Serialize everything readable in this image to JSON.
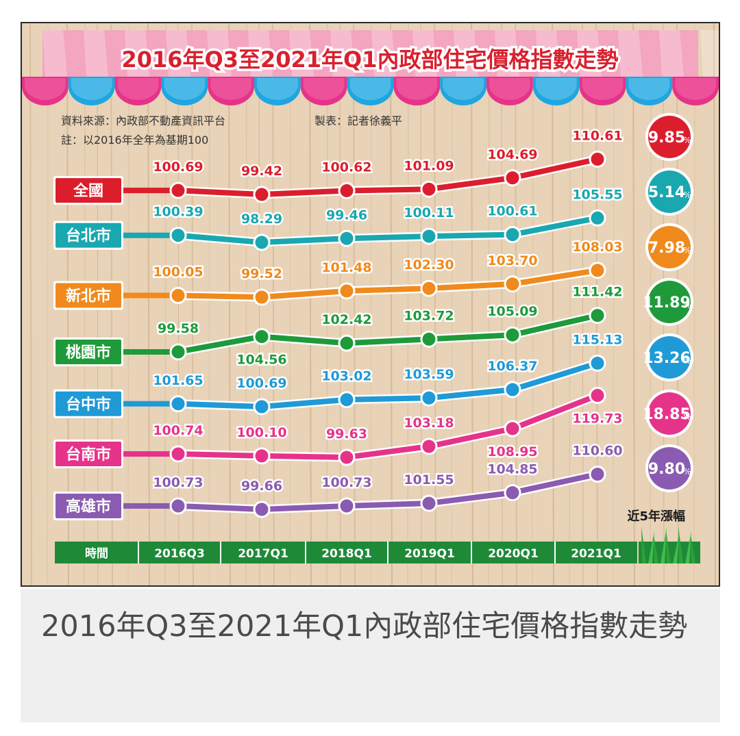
{
  "caption": "2016年Q3至2021年Q1內政部住宅價格指數走勢",
  "colors": {
    "全國": "#dc1e2c",
    "台北市": "#19a7b0",
    "新北市": "#f08a1c",
    "桃園市": "#1e9a3a",
    "台中市": "#1f9ad6",
    "台南市": "#e6338a",
    "高雄市": "#8a5bb0"
  },
  "chart_data": {
    "type": "line",
    "title": "2016年Q3至2021年Q1內政部住宅價格指數走勢",
    "source_note": "資料來源：內政部不動產資訊平台",
    "author_note": "製表：記者徐義平",
    "base_note": "註：以2016年全年為基期100",
    "x_label": "時間",
    "categories": [
      "2016Q3",
      "2017Q1",
      "2018Q1",
      "2019Q1",
      "2020Q1",
      "2021Q1"
    ],
    "change_label": "近5年漲幅",
    "series": [
      {
        "name": "全國",
        "values": [
          100.69,
          99.42,
          100.62,
          101.09,
          104.69,
          110.61
        ],
        "change": "9.85"
      },
      {
        "name": "台北市",
        "values": [
          100.39,
          98.29,
          99.46,
          100.11,
          100.61,
          105.55
        ],
        "change": "5.14"
      },
      {
        "name": "新北市",
        "values": [
          100.05,
          99.52,
          101.48,
          102.3,
          103.7,
          108.03
        ],
        "change": "7.98"
      },
      {
        "name": "桃園市",
        "values": [
          99.58,
          104.56,
          102.42,
          103.72,
          105.09,
          111.42
        ],
        "change": "11.89"
      },
      {
        "name": "台中市",
        "values": [
          101.65,
          100.69,
          103.02,
          103.59,
          106.37,
          115.13
        ],
        "change": "13.26"
      },
      {
        "name": "台南市",
        "values": [
          100.74,
          100.1,
          99.63,
          103.18,
          108.95,
          119.73
        ],
        "change": "18.85"
      },
      {
        "name": "高雄市",
        "values": [
          100.73,
          99.66,
          100.73,
          101.55,
          104.85,
          110.6
        ],
        "change": "9.80"
      }
    ],
    "change_unit": "%"
  }
}
